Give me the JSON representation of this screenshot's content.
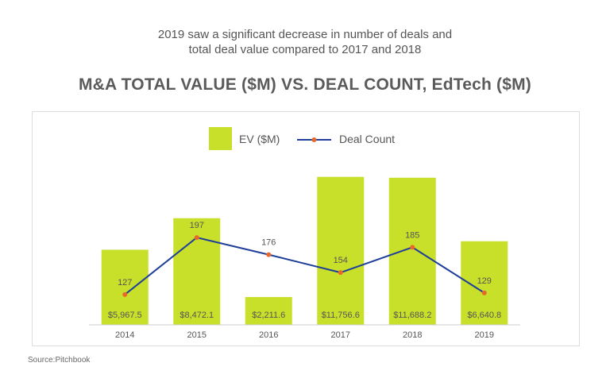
{
  "header": {
    "subtitle_line1": "2019 saw a significant decrease in number of deals and",
    "subtitle_line2": "total deal value compared to 2017 and 2018",
    "title": "M&A TOTAL VALUE ($M) VS. DEAL COUNT, EdTech ($M)"
  },
  "footer": {
    "source": "Source:Pitchbook"
  },
  "colors": {
    "bar": "#c8e02a",
    "line": "#1f3f9a",
    "marker": "#e8672a",
    "axis": "#cccccc",
    "label": "#555555"
  },
  "chart_data": {
    "type": "bar",
    "title": "M&A TOTAL VALUE ($M) VS. DEAL COUNT, EdTech ($M)",
    "categories": [
      "2014",
      "2015",
      "2016",
      "2017",
      "2018",
      "2019"
    ],
    "legend": {
      "position": "top",
      "entries": [
        "EV ($M)",
        "Deal Count"
      ]
    },
    "series": [
      {
        "name": "EV ($M)",
        "type": "bar",
        "values": [
          5967.5,
          8472.1,
          2211.6,
          11756.6,
          11688.2,
          6640.8
        ],
        "labels": [
          "$5,967.5",
          "$8,472.1",
          "$2,211.6",
          "$11,756.6",
          "$11,688.2",
          "$6,640.8"
        ],
        "ylim": [
          0,
          11800
        ]
      },
      {
        "name": "Deal Count",
        "type": "line",
        "values": [
          127,
          197,
          176,
          154,
          185,
          129
        ],
        "labels": [
          "127",
          "197",
          "176",
          "154",
          "185",
          "129"
        ],
        "ylim": [
          0,
          250
        ]
      }
    ],
    "xlabel": "",
    "ylabel": "",
    "grid": false
  }
}
